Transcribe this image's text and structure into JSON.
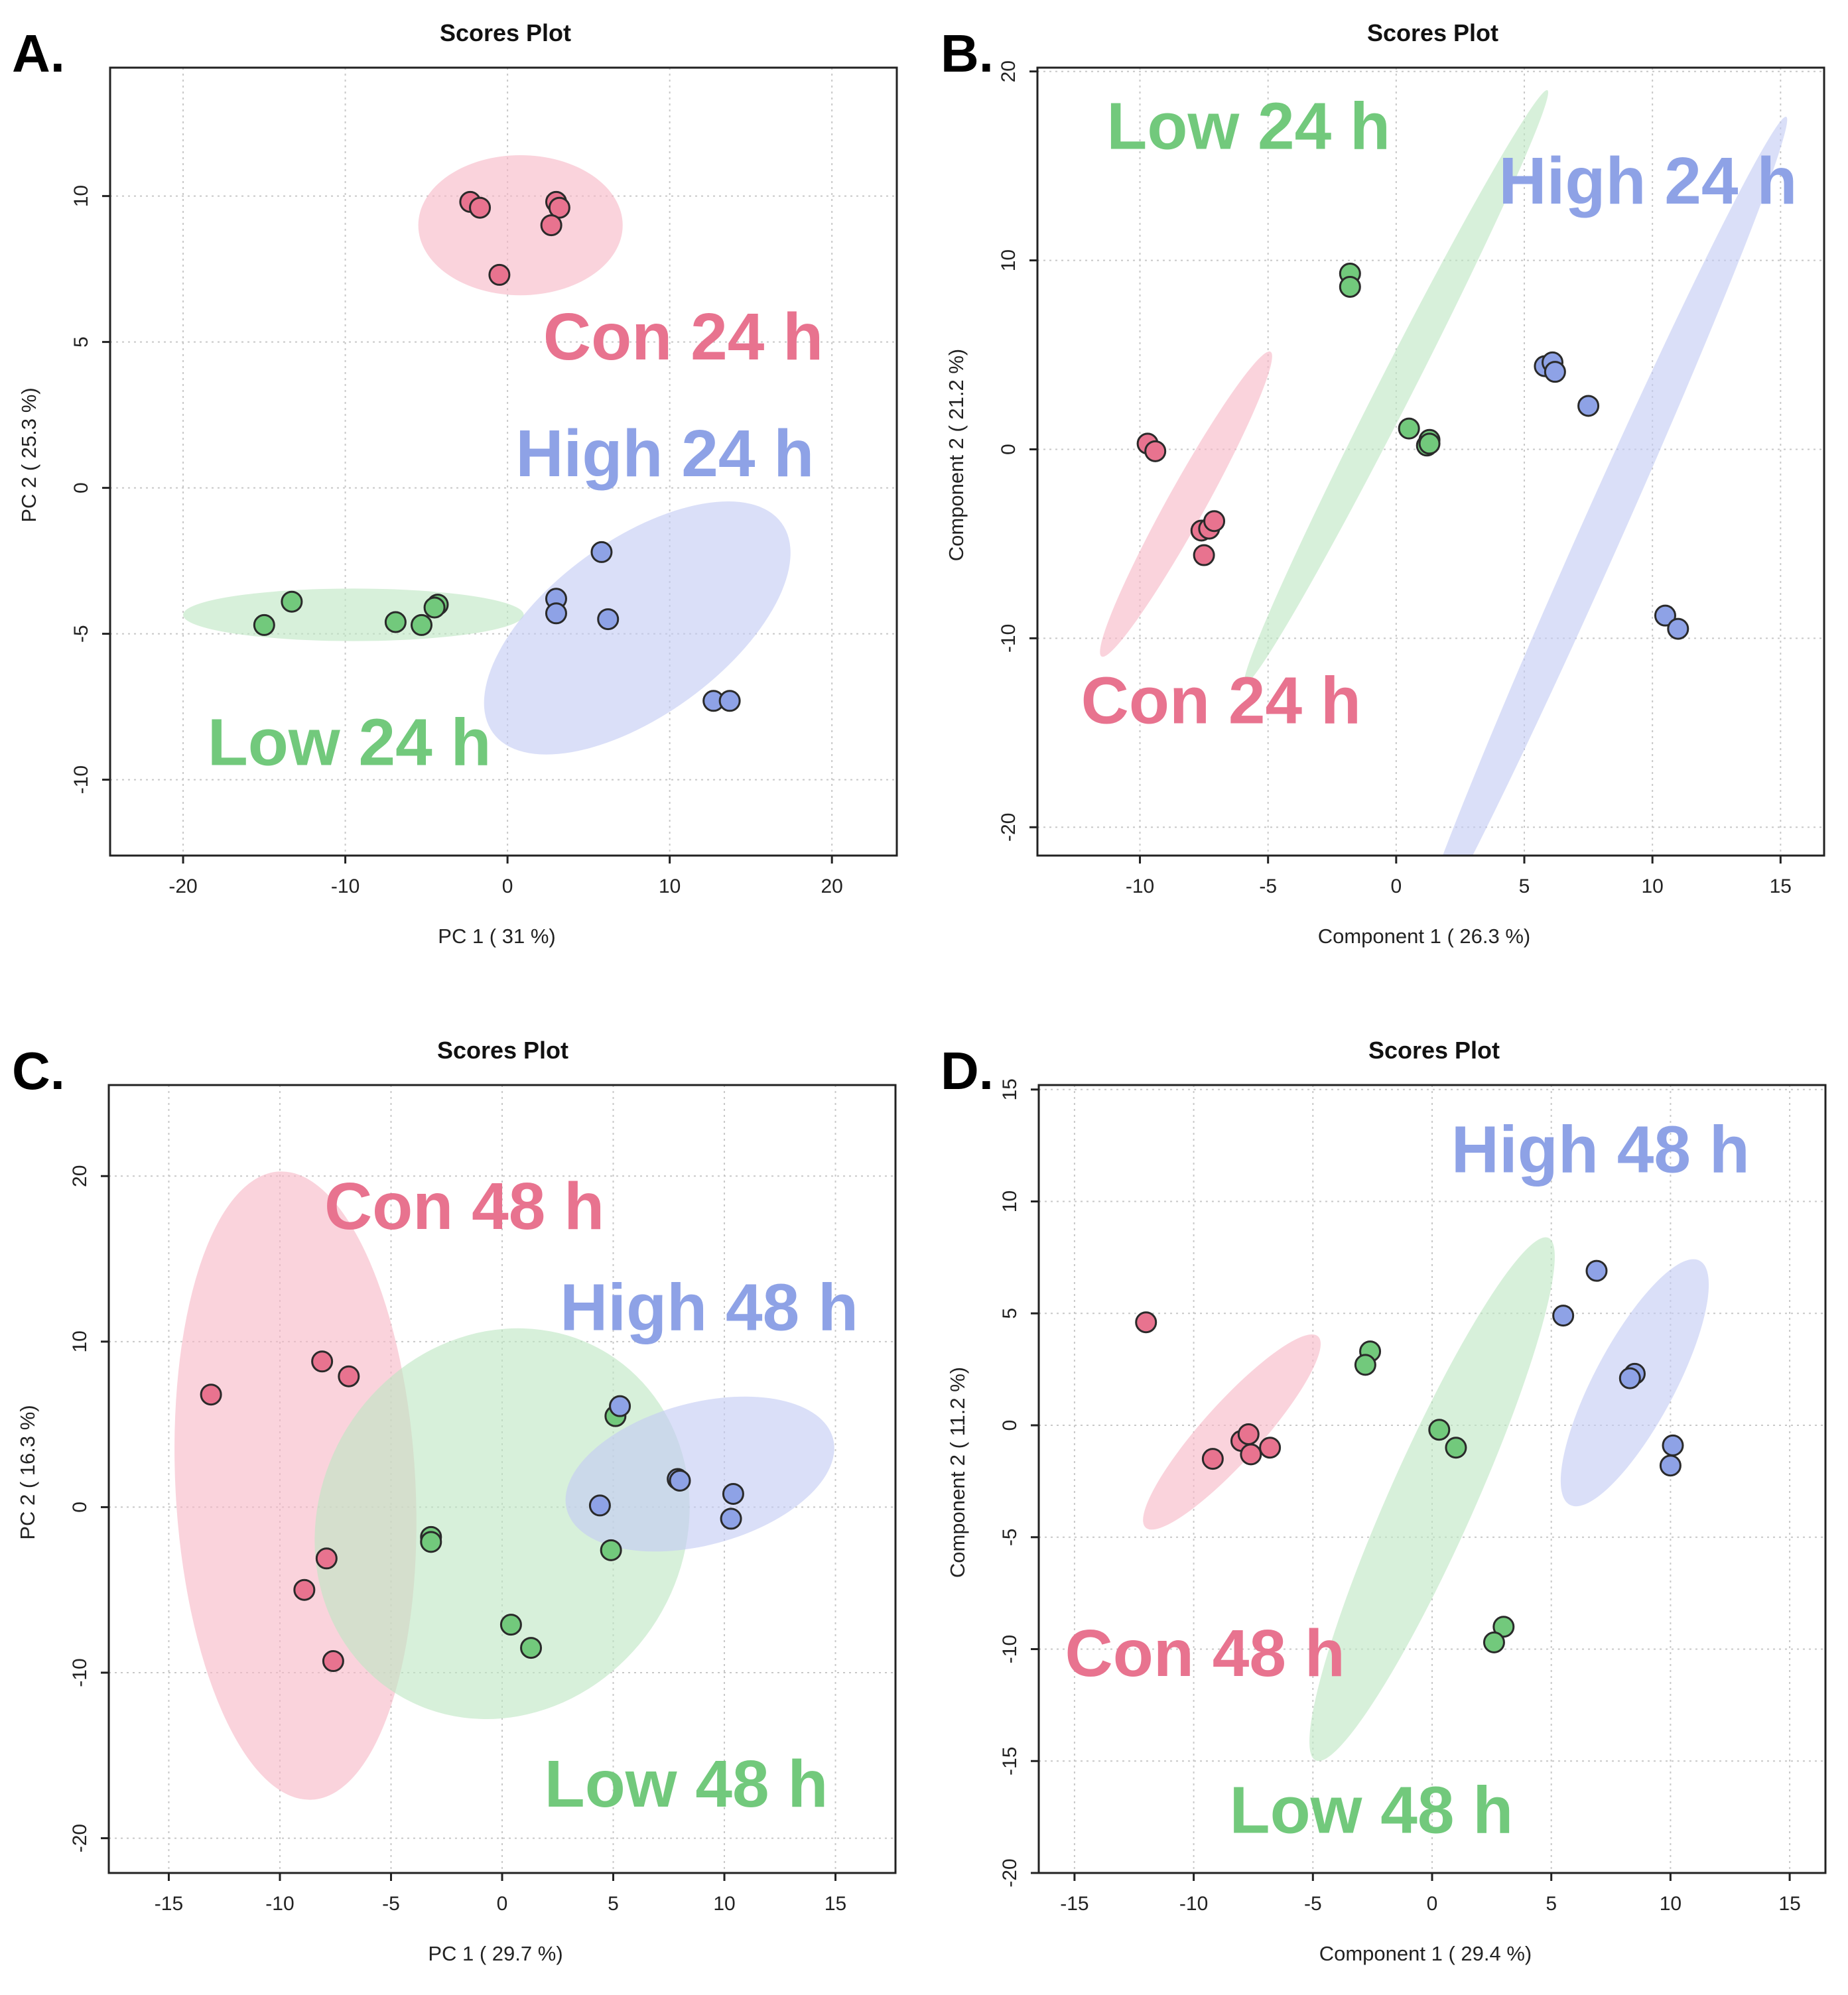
{
  "figure": {
    "panels": [
      "A.",
      "B.",
      "C.",
      "D."
    ]
  },
  "colors": {
    "con": "#e8738f",
    "low": "#72c97c",
    "high": "#8ea2e6",
    "con_fill": "#f7b8c6",
    "low_fill": "#bfe6c3",
    "high_fill": "#c3ccf3",
    "point_stroke": "#2a2a2a",
    "grid": "#c8c8c8"
  },
  "chart_data": [
    {
      "panel": "A.",
      "type": "scatter",
      "title": "Scores Plot",
      "xlabel": "PC 1 ( 31 %)",
      "ylabel": "PC 2 ( 25.3 %)",
      "xlim": [
        -24.5,
        24
      ],
      "ylim": [
        -12.6,
        14.4
      ],
      "xticks": [
        -20,
        -10,
        0,
        10,
        20
      ],
      "yticks": [
        -10,
        -5,
        0,
        5,
        10
      ],
      "xtick_labels": [
        "-20",
        "-10",
        "0",
        "10",
        "20"
      ],
      "ytick_labels": [
        "-10",
        "-5",
        "0",
        "5",
        "10"
      ],
      "series": [
        {
          "name": "Con 24 h",
          "color_key": "con",
          "points": [
            [
              -2.3,
              9.8
            ],
            [
              -1.7,
              9.6
            ],
            [
              3.0,
              9.8
            ],
            [
              3.2,
              9.6
            ],
            [
              2.7,
              9.0
            ],
            [
              -0.5,
              7.3
            ]
          ],
          "ellipse": {
            "cx": 0.8,
            "cy": 9.0,
            "rx": 6.3,
            "ry": 2.4,
            "angle": 0
          }
        },
        {
          "name": "Low 24 h",
          "color_key": "low",
          "points": [
            [
              -15.0,
              -4.7
            ],
            [
              -13.3,
              -3.9
            ],
            [
              -6.9,
              -4.6
            ],
            [
              -5.3,
              -4.7
            ],
            [
              -4.3,
              -4.0
            ],
            [
              -4.5,
              -4.1
            ]
          ],
          "ellipse": {
            "cx": -9.5,
            "cy": -4.35,
            "rx": 10.5,
            "ry": 0.9,
            "angle": 0
          }
        },
        {
          "name": "High 24 h",
          "color_key": "high",
          "points": [
            [
              5.8,
              -2.2
            ],
            [
              3.0,
              -3.8
            ],
            [
              3.0,
              -4.3
            ],
            [
              6.2,
              -4.5
            ],
            [
              12.7,
              -7.3
            ],
            [
              13.7,
              -7.3
            ]
          ],
          "ellipse": {
            "cx": 8.0,
            "cy": -4.8,
            "rx": 11.0,
            "ry": 3.0,
            "angle": -36
          }
        }
      ],
      "annotations": [
        {
          "text": "Con 24 h",
          "color_key": "con",
          "x": 2.2,
          "y": 4.4
        },
        {
          "text": "High 24 h",
          "color_key": "high",
          "x": 0.5,
          "y": 0.4
        },
        {
          "text": "Low 24 h",
          "color_key": "low",
          "x": -18.5,
          "y": -9.5
        }
      ]
    },
    {
      "panel": "B.",
      "type": "scatter",
      "title": "Scores Plot",
      "xlabel": "Component 1 ( 26.3 %)",
      "ylabel": "Component 2 ( 21.2 %)",
      "xlim": [
        -14,
        16.7
      ],
      "ylim": [
        -21.5,
        20.2
      ],
      "xticks": [
        -10,
        -5,
        0,
        5,
        10,
        15
      ],
      "yticks": [
        -20,
        -10,
        0,
        10,
        20
      ],
      "xtick_labels": [
        "-10",
        "-5",
        "0",
        "5",
        "10",
        "15"
      ],
      "ytick_labels": [
        "-20",
        "-10",
        "0",
        "10",
        "20"
      ],
      "series": [
        {
          "name": "Con 24 h",
          "color_key": "con",
          "points": [
            [
              -9.7,
              0.3
            ],
            [
              -9.4,
              -0.1
            ],
            [
              -7.6,
              -4.3
            ],
            [
              -7.3,
              -4.2
            ],
            [
              -7.1,
              -3.8
            ],
            [
              -7.5,
              -5.6
            ]
          ],
          "ellipse": {
            "cx": -8.2,
            "cy": -2.9,
            "rx": 6.8,
            "ry": 1.0,
            "angle": -61
          }
        },
        {
          "name": "Low 24 h",
          "color_key": "low",
          "points": [
            [
              -1.8,
              9.3
            ],
            [
              -1.8,
              8.6
            ],
            [
              0.5,
              1.1
            ],
            [
              1.3,
              0.5
            ],
            [
              1.2,
              0.2
            ],
            [
              1.3,
              0.3
            ]
          ],
          "ellipse": {
            "cx": 0.0,
            "cy": 3.3,
            "rx": 13.0,
            "ry": 0.9,
            "angle": -63
          }
        },
        {
          "name": "High 24 h",
          "color_key": "high",
          "points": [
            [
              5.8,
              4.4
            ],
            [
              6.1,
              4.6
            ],
            [
              6.2,
              4.1
            ],
            [
              7.5,
              2.3
            ],
            [
              10.5,
              -8.8
            ],
            [
              11.0,
              -9.5
            ]
          ],
          "ellipse": {
            "cx": 7.9,
            "cy": -4.7,
            "rx": 18.0,
            "ry": 1.1,
            "angle": -66
          }
        }
      ],
      "annotations": [
        {
          "text": "Low 24 h",
          "color_key": "low",
          "x": -11.3,
          "y": 15.9
        },
        {
          "text": "High 24 h",
          "color_key": "high",
          "x": 4.0,
          "y": 13.0
        },
        {
          "text": "Con 24 h",
          "color_key": "con",
          "x": -12.3,
          "y": -14.5
        }
      ]
    },
    {
      "panel": "C.",
      "type": "scatter",
      "title": "Scores Plot",
      "xlabel": "PC 1 ( 29.7 %)",
      "ylabel": "PC 2 ( 16.3 %)",
      "xlim": [
        -17.7,
        17.7
      ],
      "ylim": [
        -22.1,
        25.5
      ],
      "xticks": [
        -15,
        -10,
        -5,
        0,
        5,
        10,
        15
      ],
      "yticks": [
        -20,
        -10,
        0,
        10,
        20
      ],
      "xtick_labels": [
        "-15",
        "-10",
        "-5",
        "0",
        "5",
        "10",
        "15"
      ],
      "ytick_labels": [
        "-20",
        "-10",
        "0",
        "10",
        "20"
      ],
      "series": [
        {
          "name": "Con 48 h",
          "color_key": "con",
          "points": [
            [
              -13.1,
              6.8
            ],
            [
              -8.1,
              8.8
            ],
            [
              -6.9,
              7.9
            ],
            [
              -7.9,
              -3.1
            ],
            [
              -8.9,
              -5.0
            ],
            [
              -7.6,
              -9.3
            ]
          ],
          "ellipse": {
            "cx": -9.3,
            "cy": 1.3,
            "rx": 5.4,
            "ry": 19.0,
            "angle": -3
          }
        },
        {
          "name": "Low 48 h",
          "color_key": "low",
          "points": [
            [
              5.1,
              5.5
            ],
            [
              -3.2,
              -1.8
            ],
            [
              -3.2,
              -2.1
            ],
            [
              4.9,
              -2.6
            ],
            [
              0.4,
              -7.1
            ],
            [
              1.3,
              -8.5
            ]
          ],
          "ellipse": {
            "cx": 0.0,
            "cy": -1.0,
            "rx": 8.2,
            "ry": 12.1,
            "angle": 32
          }
        },
        {
          "name": "High 48 h",
          "color_key": "high",
          "points": [
            [
              5.3,
              6.1
            ],
            [
              4.4,
              0.1
            ],
            [
              7.9,
              1.7
            ],
            [
              8.0,
              1.6
            ],
            [
              10.4,
              0.8
            ],
            [
              10.3,
              -0.7
            ]
          ],
          "ellipse": {
            "cx": 8.9,
            "cy": 2.0,
            "rx": 6.2,
            "ry": 4.3,
            "angle": -15
          }
        }
      ],
      "annotations": [
        {
          "text": "Con 48 h",
          "color_key": "con",
          "x": -8.0,
          "y": 16.8
        },
        {
          "text": "High 48 h",
          "color_key": "high",
          "x": 2.6,
          "y": 10.7
        },
        {
          "text": "Low 48 h",
          "color_key": "low",
          "x": 1.9,
          "y": -18.1
        }
      ]
    },
    {
      "panel": "D.",
      "type": "scatter",
      "title": "Scores Plot",
      "xlabel": "Component 1 ( 29.4 %)",
      "ylabel": "Component 2 ( 11.2 %)",
      "xlim": [
        -16.5,
        16.5
      ],
      "ylim": [
        -20,
        15.2
      ],
      "xticks": [
        -15,
        -10,
        -5,
        0,
        5,
        10,
        15
      ],
      "yticks": [
        -20,
        -15,
        -10,
        -5,
        0,
        5,
        10,
        15
      ],
      "xtick_labels": [
        "-15",
        "-10",
        "-5",
        "0",
        "5",
        "10",
        "15"
      ],
      "ytick_labels": [
        "-20",
        "-15",
        "-10",
        "-5",
        "0",
        "5",
        "10",
        "15"
      ],
      "series": [
        {
          "name": "Con 48 h",
          "color_key": "con",
          "points": [
            [
              -12.0,
              4.6
            ],
            [
              -8.0,
              -0.7
            ],
            [
              -7.7,
              -0.4
            ],
            [
              -7.6,
              -1.3
            ],
            [
              -6.8,
              -1.0
            ],
            [
              -9.2,
              -1.5
            ]
          ],
          "ellipse": {
            "cx": -8.4,
            "cy": -0.3,
            "rx": 5.4,
            "ry": 1.3,
            "angle": -48
          }
        },
        {
          "name": "Low 48 h",
          "color_key": "low",
          "points": [
            [
              -2.6,
              3.3
            ],
            [
              -2.8,
              2.7
            ],
            [
              0.3,
              -0.2
            ],
            [
              1.0,
              -1.0
            ],
            [
              3.0,
              -9.0
            ],
            [
              2.6,
              -9.7
            ]
          ],
          "ellipse": {
            "cx": 0.0,
            "cy": -3.3,
            "rx": 12.0,
            "ry": 1.9,
            "angle": -66
          }
        },
        {
          "name": "High 48 h",
          "color_key": "high",
          "points": [
            [
              6.9,
              6.9
            ],
            [
              5.5,
              4.9
            ],
            [
              8.5,
              2.3
            ],
            [
              8.3,
              2.1
            ],
            [
              10.1,
              -0.9
            ],
            [
              10.0,
              -1.8
            ]
          ],
          "ellipse": {
            "cx": 8.5,
            "cy": 1.9,
            "rx": 5.8,
            "ry": 1.8,
            "angle": -62
          }
        }
      ],
      "annotations": [
        {
          "text": "High 48 h",
          "color_key": "high",
          "x": 0.8,
          "y": 11.3
        },
        {
          "text": "Con 48 h",
          "color_key": "con",
          "x": -15.4,
          "y": -11.2
        },
        {
          "text": "Low 48 h",
          "color_key": "low",
          "x": -8.5,
          "y": -18.2
        }
      ]
    }
  ]
}
